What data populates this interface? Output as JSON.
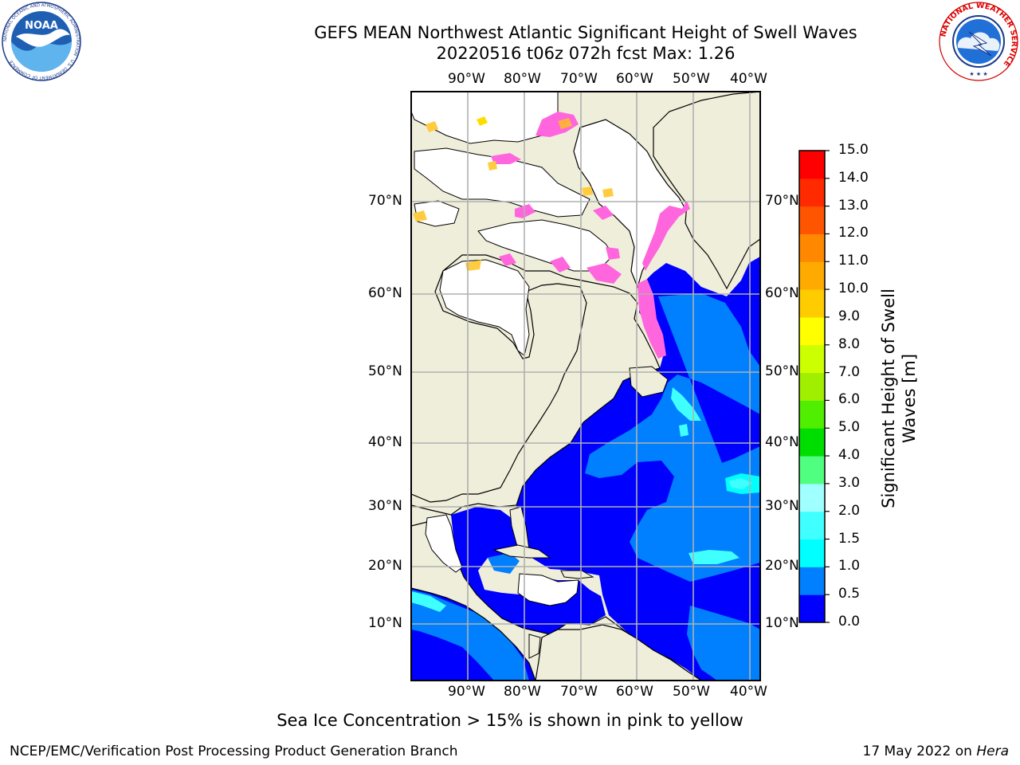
{
  "header": {
    "title": "GEFS MEAN Northwest Atlantic Significant Height of Swell Waves",
    "subtitle": "20220516 t06z 072h fcst   Max: 1.26"
  },
  "logos": {
    "left": {
      "text": "NOAA",
      "ring_text": "NATIONAL OCEANIC AND ATMOSPHERIC ADMINISTRATION · U.S. DEPARTMENT OF COMMERCE"
    },
    "right": {
      "ring_text": "NATIONAL WEATHER SERVICE"
    }
  },
  "map": {
    "lon_labels": [
      "90°W",
      "80°W",
      "70°W",
      "60°W",
      "50°W",
      "40°W"
    ],
    "lat_labels": [
      "70°N",
      "60°N",
      "50°N",
      "40°N",
      "30°N",
      "20°N",
      "10°N"
    ],
    "colors": {
      "land": "#efeedb",
      "ice_free_unknown": "#ffffff",
      "grid": "#b0b0b0",
      "coast": "#000000"
    }
  },
  "colorbar": {
    "title": "Significant Height of Swell Waves [m]",
    "title_line1": "Significant Height of Swell",
    "title_line2": "Waves [m]",
    "ticks": [
      "0.0",
      "0.5",
      "1.0",
      "1.5",
      "2.0",
      "3.0",
      "4.0",
      "5.0",
      "6.0",
      "7.0",
      "8.0",
      "9.0",
      "10.0",
      "11.0",
      "12.0",
      "13.0",
      "14.0",
      "15.0"
    ],
    "colors": [
      "#0000ff",
      "#0080ff",
      "#00ffff",
      "#40ffff",
      "#a0ffff",
      "#50ff80",
      "#00dd00",
      "#50ee00",
      "#a0ee00",
      "#ccff00",
      "#ffff00",
      "#ffcc00",
      "#ffaa00",
      "#ff8800",
      "#ff5500",
      "#ff2a00",
      "#ff0000"
    ]
  },
  "note": "Sea Ice Concentration > 15% is shown in pink to yellow",
  "footer": {
    "left": "NCEP/EMC/Verification Post Processing Product Generation Branch",
    "right_prefix": "17 May 2022 on ",
    "right_host": "Hera"
  }
}
